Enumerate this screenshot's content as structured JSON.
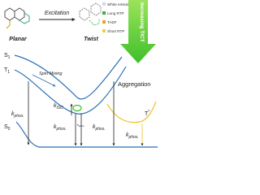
{
  "molecules": [
    {
      "label": "Planar"
    },
    {
      "label": "Twist"
    }
  ],
  "excitation": "Excitation",
  "legend": [
    "White emission",
    "Long RTP",
    "TADF",
    "Short RTP"
  ],
  "tict_arrow": "Increasing TICT",
  "states": [
    {
      "main": "S",
      "sub": "1"
    },
    {
      "main": "T",
      "sub": "1"
    },
    {
      "main": "S",
      "sub": "0"
    },
    {
      "main": "T",
      "sub": "*"
    }
  ],
  "spin_mixing": "Spin Mixing",
  "aggregation": "Aggregation",
  "rates": [
    {
      "main": "k",
      "sub": "ISC"
    },
    {
      "main": "k",
      "sub": "phos."
    },
    {
      "main": "k",
      "sub": "phos."
    },
    {
      "main": "k",
      "sub": "phos."
    },
    {
      "main": "k",
      "sub": "phos."
    },
    {
      "main": "k",
      "sub": "phos."
    }
  ]
}
